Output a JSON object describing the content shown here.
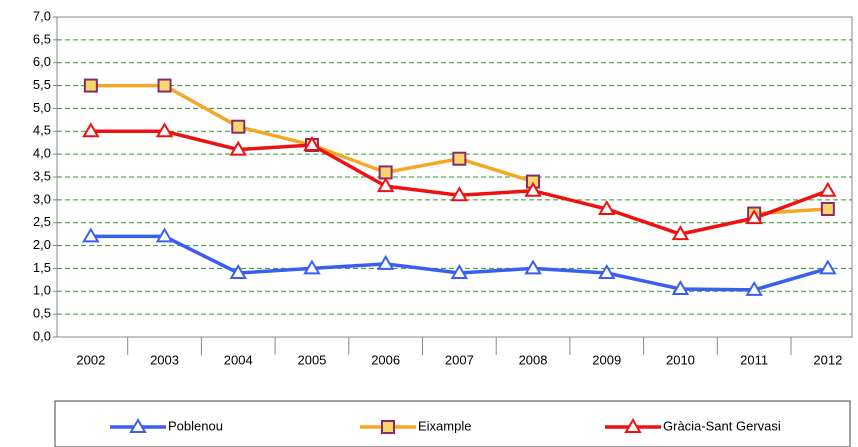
{
  "chart_data": {
    "type": "line",
    "categories": [
      "2002",
      "2003",
      "2004",
      "2005",
      "2006",
      "2007",
      "2008",
      "2009",
      "2010",
      "2011",
      "2012"
    ],
    "series": [
      {
        "name": "Poblenou",
        "color": "#3a5ff0",
        "marker": "triangle",
        "values": [
          2.2,
          2.2,
          1.4,
          1.5,
          1.6,
          1.4,
          1.5,
          1.4,
          1.05,
          1.03,
          1.5
        ]
      },
      {
        "name": "Eixample",
        "color": "#f5a623",
        "marker": "square",
        "values": [
          5.5,
          5.5,
          4.6,
          4.2,
          3.6,
          3.9,
          3.4,
          null,
          null,
          2.7,
          2.8
        ]
      },
      {
        "name": "Gràcia-Sant Gervasi",
        "color": "#f01010",
        "marker": "triangle",
        "values": [
          4.5,
          4.5,
          4.1,
          4.2,
          3.3,
          3.1,
          3.2,
          2.8,
          2.25,
          2.6,
          3.2
        ]
      }
    ],
    "ylim": [
      0,
      7
    ],
    "yticks": [
      {
        "value": 0,
        "label": "0,0"
      },
      {
        "value": 0.5,
        "label": "0,5"
      },
      {
        "value": 1,
        "label": "1,0"
      },
      {
        "value": 1.5,
        "label": "1,5"
      },
      {
        "value": 2,
        "label": "2,0"
      },
      {
        "value": 2.5,
        "label": "2,5"
      },
      {
        "value": 3,
        "label": "3,0"
      },
      {
        "value": 3.5,
        "label": "3,5"
      },
      {
        "value": 4,
        "label": "4,0"
      },
      {
        "value": 4.5,
        "label": "4,5"
      },
      {
        "value": 5,
        "label": "5,0"
      },
      {
        "value": 5.5,
        "label": "5,5"
      },
      {
        "value": 6,
        "label": "6,0"
      },
      {
        "value": 6.5,
        "label": "6,5"
      },
      {
        "value": 7,
        "label": "7,0"
      }
    ],
    "grid": true,
    "legend": "bottom"
  }
}
